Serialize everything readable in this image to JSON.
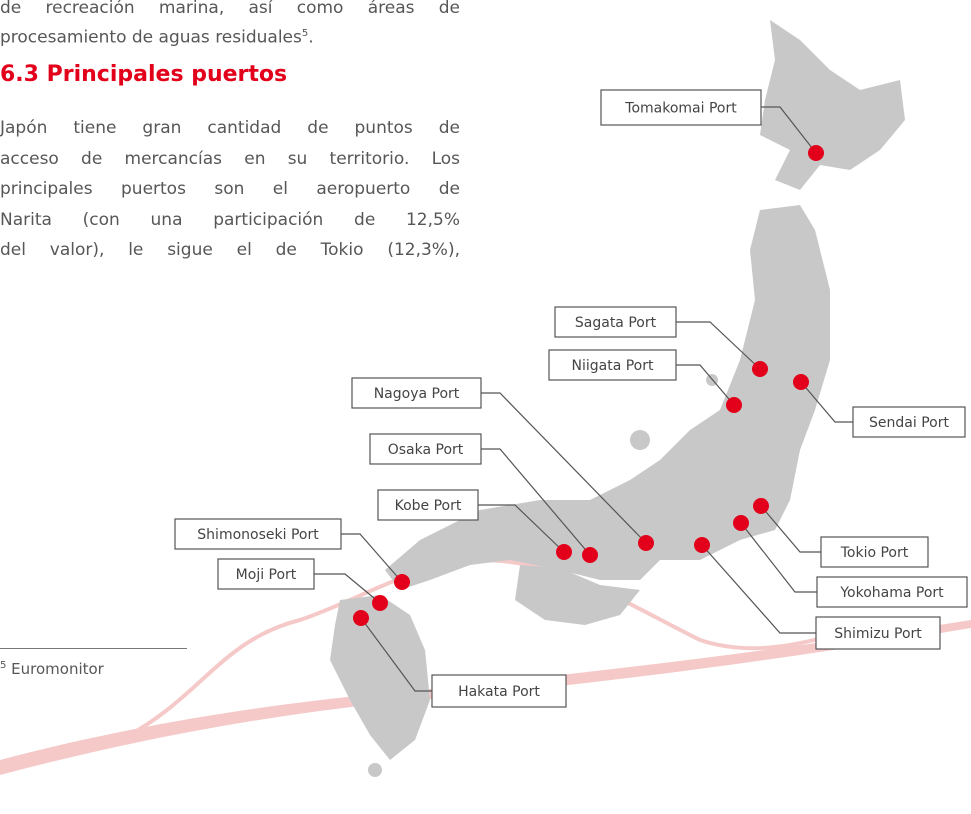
{
  "intro": {
    "lines": [
      "de recreación marina, así como áreas de",
      "procesamiento de aguas residuales"
    ],
    "footnote_ref": "5",
    "end": "."
  },
  "heading": "6.3 Principales puertos",
  "paragraph": [
    "Japón tiene gran cantidad de puntos de",
    "acceso de mercancías en su territorio. Los",
    "principales puertos son el aeropuerto de",
    "Narita (con una participación de 12,5%",
    "del valor), le sigue el de Tokio (12,3%),"
  ],
  "footnote": {
    "number": "5",
    "text": "Euromonitor"
  },
  "ports": [
    "Tomakomai Port",
    "Sagata Port",
    "Niigata Port",
    "Sendai Port",
    "Nagoya Port",
    "Osaka Port",
    "Kobe Port",
    "Shimonoseki Port",
    "Moji Port",
    "Hakata Port",
    "Tokio Port",
    "Yokohama Port",
    "Shimizu Port"
  ]
}
